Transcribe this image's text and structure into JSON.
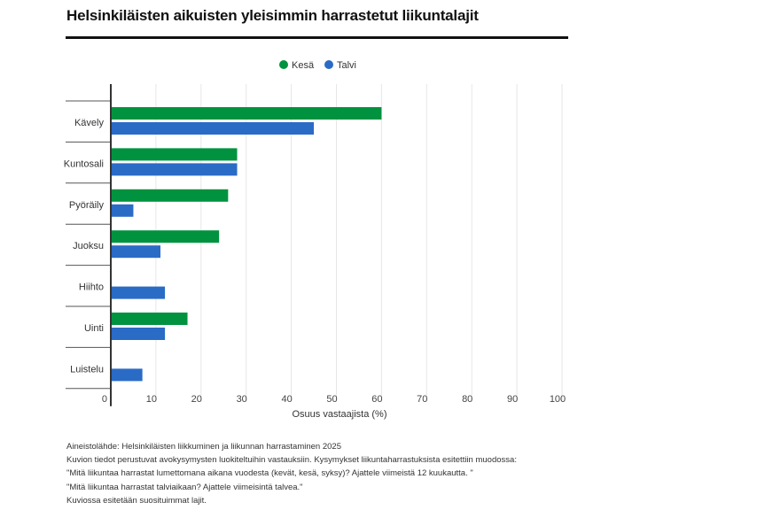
{
  "chart_data": {
    "type": "bar",
    "orientation": "horizontal",
    "title": "Helsinkiläisten aikuisten yleisimmin harrastetut liikuntalajit",
    "categories": [
      "Kävely",
      "Kuntosali",
      "Pyöräily",
      "Juoksu",
      "Hiihto",
      "Uinti",
      "Luistelu"
    ],
    "series": [
      {
        "name": "Kesä",
        "color": "#00923f",
        "values": [
          60,
          28,
          26,
          24,
          0,
          17,
          0
        ]
      },
      {
        "name": "Talvi",
        "color": "#2a6bc6",
        "values": [
          45,
          28,
          5,
          11,
          12,
          12,
          7
        ]
      }
    ],
    "xlabel": "Osuus vastaajista (%)",
    "ylabel": "",
    "xlim": [
      0,
      100
    ],
    "xticks": [
      "0",
      "10",
      "20",
      "30",
      "40",
      "50",
      "60",
      "70",
      "80",
      "90",
      "100"
    ],
    "grid": true,
    "legend": "top-center"
  },
  "notes": [
    "Aineistolähde: Helsinkiläisten liikkuminen ja liikunnan harrastaminen 2025",
    "Kuvion tiedot perustuvat avokysymysten luokiteltuihin vastauksiin. Kysymykset liikuntaharrastuksista esitettiin muodossa:",
    "\"Mitä liikuntaa harrastat lumettomana aikana vuodesta (kevät, kesä, syksy)? Ajattele viimeistä 12 kuukautta. \"",
    "\"Mitä liikuntaa harrastat talviaikaan? Ajattele viimeisintä talvea.\"",
    "Kuviossa esitetään suosituimmat lajit."
  ]
}
